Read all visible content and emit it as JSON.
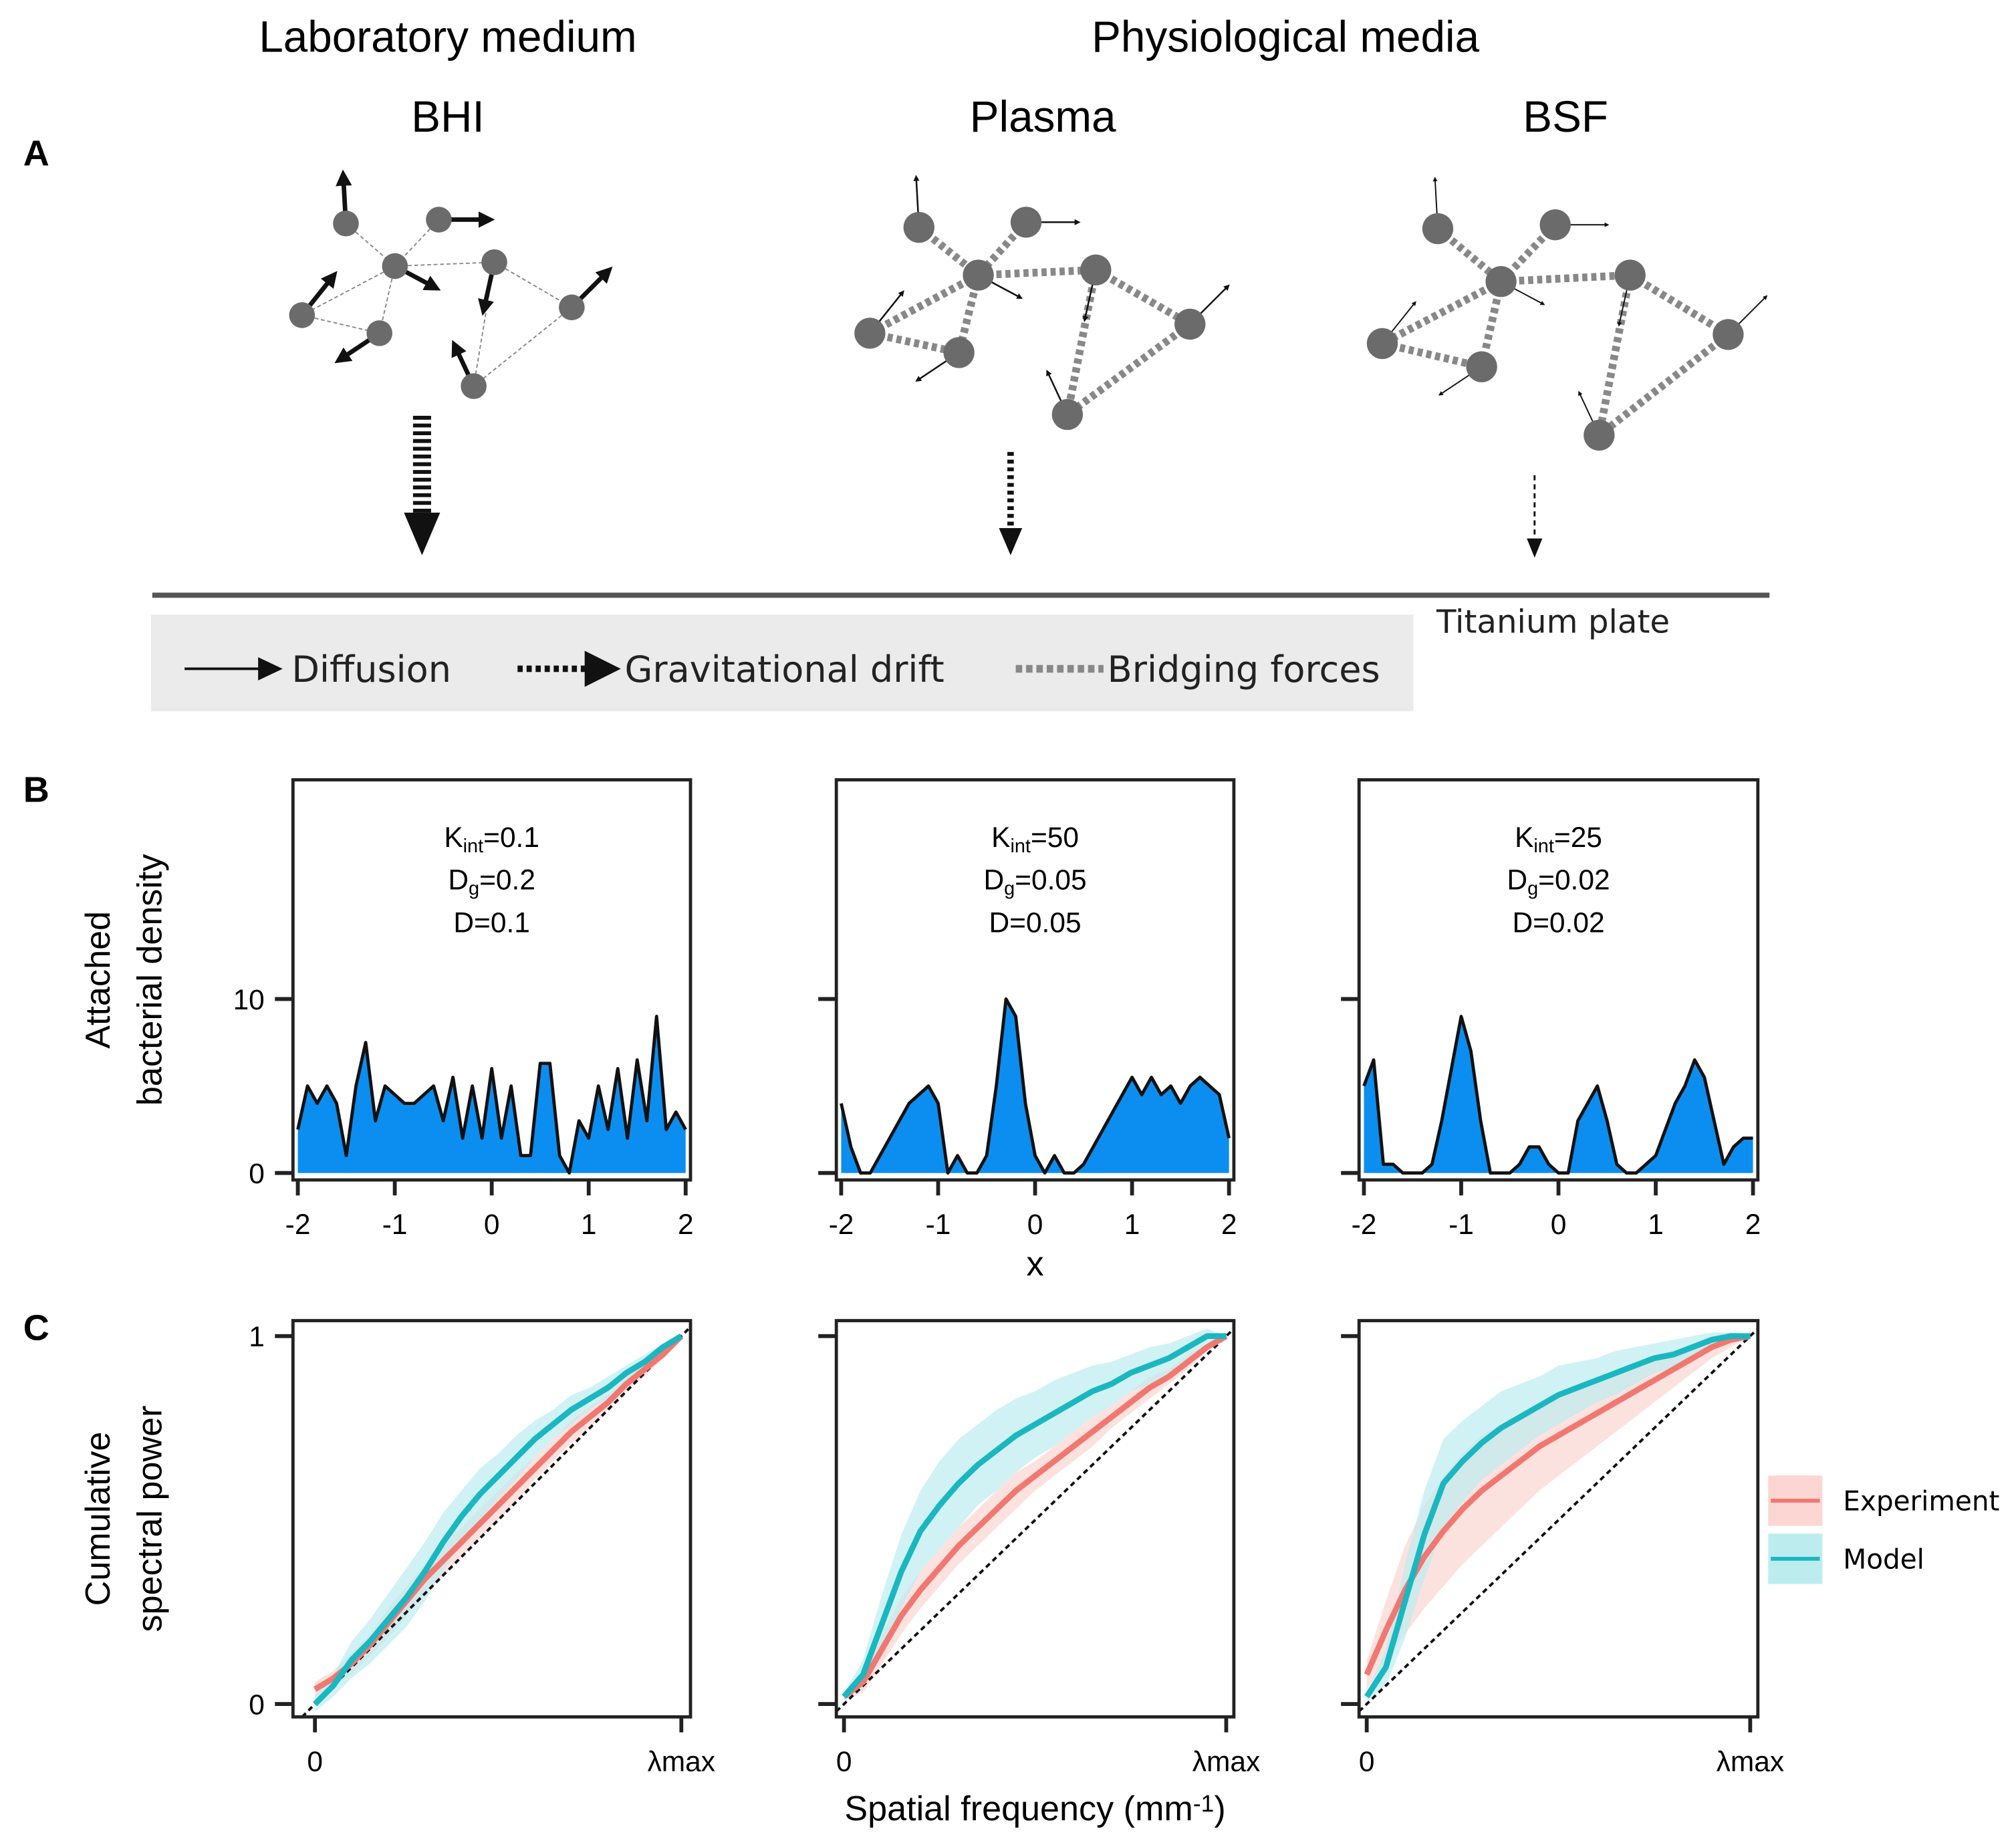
{
  "column_headers": {
    "laboratory_medium": "Laboratory medium",
    "physiological_media": "Physiological media"
  },
  "media": [
    "BHI",
    "Plasma",
    "BSF"
  ],
  "panel_labels": [
    "A",
    "B",
    "C"
  ],
  "schematic": {
    "surface_label": "Titanium plate",
    "legend": [
      "Diffusion",
      "Gravitational drift",
      "Bridging forces"
    ]
  },
  "chart_data": [
    {
      "type": "area",
      "color": "#0b8ef0",
      "annotation": [
        [
          "K",
          "int",
          "=0.1"
        ],
        [
          "D",
          "g",
          "=0.2"
        ],
        [
          "D=0.1"
        ]
      ],
      "ylabel": [
        "Attached",
        "bacterial density"
      ],
      "x": [
        -2,
        -1.9,
        -1.8,
        -1.7,
        -1.6,
        -1.5,
        -1.4,
        -1.3,
        -1.2,
        -1.1,
        -1,
        -0.9,
        -0.8,
        -0.7,
        -0.6,
        -0.5,
        -0.4,
        -0.3,
        -0.2,
        -0.1,
        0,
        0.1,
        0.2,
        0.3,
        0.4,
        0.5,
        0.6,
        0.7,
        0.8,
        0.9,
        1,
        1.1,
        1.2,
        1.3,
        1.4,
        1.5,
        1.6,
        1.7,
        1.8,
        1.9,
        2
      ],
      "values": [
        2.5,
        5,
        4,
        5,
        4,
        1,
        5,
        7.5,
        3,
        5,
        4.5,
        4,
        4,
        4.5,
        5,
        3,
        5.5,
        2,
        5,
        2,
        6,
        2,
        5,
        1,
        1,
        6.3,
        6.3,
        1,
        0,
        3,
        2,
        5,
        2.5,
        6,
        2,
        6.5,
        3,
        9,
        2.5,
        3.5,
        2.5
      ],
      "xlim": [
        -2.05,
        2.05
      ],
      "ylim": [
        -0.4,
        22.6
      ],
      "xticks": [
        -2,
        -1,
        0,
        1,
        2
      ],
      "yticks": [
        0,
        10
      ],
      "ytick_labels": true
    },
    {
      "type": "area",
      "color": "#0b8ef0",
      "annotation": [
        [
          "K",
          "int",
          "=50"
        ],
        [
          "D",
          "g",
          "=0.05"
        ],
        [
          "D=0.05"
        ]
      ],
      "xlabel": "x",
      "x": [
        -2,
        -1.9,
        -1.8,
        -1.7,
        -1.6,
        -1.5,
        -1.4,
        -1.3,
        -1.2,
        -1.1,
        -1,
        -0.9,
        -0.8,
        -0.7,
        -0.6,
        -0.5,
        -0.4,
        -0.3,
        -0.2,
        -0.1,
        0,
        0.1,
        0.2,
        0.3,
        0.4,
        0.5,
        0.6,
        0.7,
        0.8,
        0.9,
        1,
        1.1,
        1.2,
        1.3,
        1.4,
        1.5,
        1.6,
        1.7,
        1.8,
        1.9,
        2
      ],
      "values": [
        4,
        1.5,
        0,
        0,
        1,
        2,
        3,
        4,
        4.5,
        5,
        4,
        0,
        1,
        0,
        0,
        1,
        5,
        10,
        9,
        4,
        1,
        0,
        1,
        0,
        0,
        0.5,
        1.5,
        2.5,
        3.5,
        4.5,
        5.5,
        4.5,
        5.5,
        4.5,
        5,
        4,
        5,
        5.5,
        5,
        4.5,
        2
      ],
      "xlim": [
        -2.05,
        2.05
      ],
      "ylim": [
        -0.4,
        22.6
      ],
      "xticks": [
        -2,
        -1,
        0,
        1,
        2
      ],
      "yticks": [
        0,
        10
      ],
      "ytick_labels": false
    },
    {
      "type": "area",
      "color": "#0b8ef0",
      "annotation": [
        [
          "K",
          "int",
          "=25"
        ],
        [
          "D",
          "g",
          "=0.02"
        ],
        [
          "D=0.02"
        ]
      ],
      "x": [
        -2,
        -1.9,
        -1.8,
        -1.7,
        -1.6,
        -1.5,
        -1.4,
        -1.3,
        -1.2,
        -1.1,
        -1,
        -0.9,
        -0.8,
        -0.7,
        -0.6,
        -0.5,
        -0.4,
        -0.3,
        -0.2,
        -0.1,
        0,
        0.1,
        0.2,
        0.3,
        0.4,
        0.5,
        0.6,
        0.7,
        0.8,
        0.9,
        1,
        1.1,
        1.2,
        1.3,
        1.4,
        1.5,
        1.6,
        1.7,
        1.8,
        1.9,
        2
      ],
      "values": [
        5,
        6.5,
        0.5,
        0.5,
        0,
        0,
        0,
        0.5,
        3,
        6,
        9,
        7,
        3,
        0,
        0,
        0,
        0.5,
        1.5,
        1.5,
        0.5,
        0,
        0,
        3,
        4,
        5,
        3,
        0.5,
        0,
        0,
        0.5,
        1,
        2.5,
        4,
        5,
        6.5,
        5.5,
        3,
        0.5,
        1.5,
        2,
        2
      ],
      "xlim": [
        -2.05,
        2.05
      ],
      "ylim": [
        -0.4,
        22.6
      ],
      "xticks": [
        -2,
        -1,
        0,
        1,
        2
      ],
      "yticks": [
        0,
        10
      ],
      "ytick_labels": false
    },
    {
      "type": "line",
      "diagonal": true,
      "ylabel": [
        "Cumulative",
        "spectral power"
      ],
      "x": [
        0,
        0.05,
        0.1,
        0.15,
        0.2,
        0.25,
        0.3,
        0.35,
        0.4,
        0.45,
        0.5,
        0.55,
        0.6,
        0.65,
        0.7,
        0.75,
        0.8,
        0.85,
        0.9,
        0.95,
        1
      ],
      "series": [
        {
          "color": "#f07870",
          "band_color": "#fbd6d2",
          "values": [
            0.04,
            0.07,
            0.11,
            0.16,
            0.22,
            0.28,
            0.34,
            0.39,
            0.44,
            0.49,
            0.54,
            0.59,
            0.64,
            0.69,
            0.74,
            0.78,
            0.82,
            0.87,
            0.91,
            0.95,
            1
          ],
          "spread": [
            0.02,
            0.02,
            0.03,
            0.03,
            0.04,
            0.04,
            0.04,
            0.04,
            0.04,
            0.04,
            0.04,
            0.04,
            0.03,
            0.03,
            0.03,
            0.03,
            0.02,
            0.02,
            0.02,
            0.01,
            0
          ]
        },
        {
          "color": "#1ab7c1",
          "band_color": "#bdecef",
          "values": [
            0,
            0.05,
            0.12,
            0.17,
            0.23,
            0.29,
            0.36,
            0.44,
            0.51,
            0.57,
            0.62,
            0.67,
            0.72,
            0.76,
            0.8,
            0.83,
            0.86,
            0.9,
            0.93,
            0.97,
            1
          ],
          "spread": [
            0.02,
            0.03,
            0.05,
            0.06,
            0.07,
            0.08,
            0.08,
            0.08,
            0.07,
            0.07,
            0.06,
            0.06,
            0.05,
            0.04,
            0.04,
            0.03,
            0.03,
            0.02,
            0.02,
            0.01,
            0
          ]
        }
      ],
      "xlim": [
        -0.06,
        1.025
      ],
      "ylim": [
        -0.035,
        1.042
      ],
      "xticks": [
        0,
        {
          "value": 1,
          "label": [
            "λ",
            "max"
          ]
        }
      ],
      "yticks": [
        0,
        1
      ],
      "ytick_labels": true
    },
    {
      "type": "line",
      "diagonal": true,
      "xlabel": [
        "Spatial frequency (mm",
        "-1",
        ")"
      ],
      "x": [
        0,
        0.05,
        0.1,
        0.15,
        0.2,
        0.25,
        0.3,
        0.35,
        0.4,
        0.45,
        0.5,
        0.55,
        0.6,
        0.65,
        0.7,
        0.75,
        0.8,
        0.85,
        0.9,
        0.95,
        1
      ],
      "series": [
        {
          "color": "#f07870",
          "band_color": "#fbd6d2",
          "values": [
            0.02,
            0.06,
            0.15,
            0.24,
            0.31,
            0.37,
            0.43,
            0.48,
            0.53,
            0.58,
            0.62,
            0.66,
            0.7,
            0.74,
            0.78,
            0.82,
            0.86,
            0.89,
            0.93,
            0.97,
            1
          ],
          "spread": [
            0.01,
            0.03,
            0.04,
            0.05,
            0.05,
            0.05,
            0.05,
            0.05,
            0.05,
            0.05,
            0.04,
            0.04,
            0.04,
            0.04,
            0.03,
            0.03,
            0.03,
            0.02,
            0.02,
            0.01,
            0
          ]
        },
        {
          "color": "#1ab7c1",
          "band_color": "#bdecef",
          "values": [
            0.02,
            0.08,
            0.22,
            0.36,
            0.47,
            0.54,
            0.6,
            0.65,
            0.69,
            0.73,
            0.76,
            0.79,
            0.82,
            0.85,
            0.87,
            0.9,
            0.92,
            0.94,
            0.97,
            1,
            1
          ],
          "spread": [
            0.01,
            0.04,
            0.08,
            0.1,
            0.11,
            0.12,
            0.12,
            0.11,
            0.11,
            0.1,
            0.09,
            0.09,
            0.08,
            0.07,
            0.06,
            0.05,
            0.05,
            0.04,
            0.03,
            0.02,
            0
          ]
        }
      ],
      "xlim": [
        -0.02,
        1.02
      ],
      "ylim": [
        -0.035,
        1.042
      ],
      "xticks": [
        0,
        {
          "value": 1,
          "label": [
            "λ",
            "max"
          ]
        }
      ],
      "yticks": [
        0,
        1
      ],
      "ytick_labels": false
    },
    {
      "type": "line",
      "diagonal": true,
      "legend": "right",
      "x": [
        0,
        0.05,
        0.1,
        0.15,
        0.2,
        0.25,
        0.3,
        0.35,
        0.4,
        0.45,
        0.5,
        0.55,
        0.6,
        0.65,
        0.7,
        0.75,
        0.8,
        0.85,
        0.9,
        0.95,
        1
      ],
      "series": [
        {
          "name": "Experiment",
          "color": "#f07870",
          "band_color": "#fbd6d2",
          "values": [
            0.08,
            0.2,
            0.31,
            0.4,
            0.47,
            0.53,
            0.58,
            0.62,
            0.66,
            0.7,
            0.73,
            0.76,
            0.79,
            0.82,
            0.85,
            0.88,
            0.91,
            0.94,
            0.97,
            0.99,
            1
          ],
          "spread": [
            0.04,
            0.08,
            0.12,
            0.14,
            0.15,
            0.15,
            0.15,
            0.14,
            0.13,
            0.12,
            0.11,
            0.1,
            0.09,
            0.08,
            0.07,
            0.06,
            0.05,
            0.04,
            0.03,
            0.02,
            0
          ]
        },
        {
          "name": "Model",
          "color": "#1ab7c1",
          "band_color": "#bdecef",
          "values": [
            0.02,
            0.1,
            0.28,
            0.46,
            0.6,
            0.66,
            0.71,
            0.75,
            0.78,
            0.81,
            0.84,
            0.86,
            0.88,
            0.9,
            0.92,
            0.94,
            0.95,
            0.97,
            0.99,
            1,
            1
          ],
          "spread": [
            0.01,
            0.05,
            0.1,
            0.12,
            0.12,
            0.11,
            0.1,
            0.1,
            0.09,
            0.08,
            0.08,
            0.07,
            0.06,
            0.06,
            0.05,
            0.04,
            0.04,
            0.03,
            0.02,
            0.01,
            0
          ]
        }
      ],
      "xlim": [
        -0.02,
        1.02
      ],
      "ylim": [
        -0.035,
        1.042
      ],
      "xticks": [
        0,
        {
          "value": 1,
          "label": [
            "λ",
            "max"
          ]
        }
      ],
      "yticks": [
        0,
        1
      ],
      "ytick_labels": false
    }
  ]
}
